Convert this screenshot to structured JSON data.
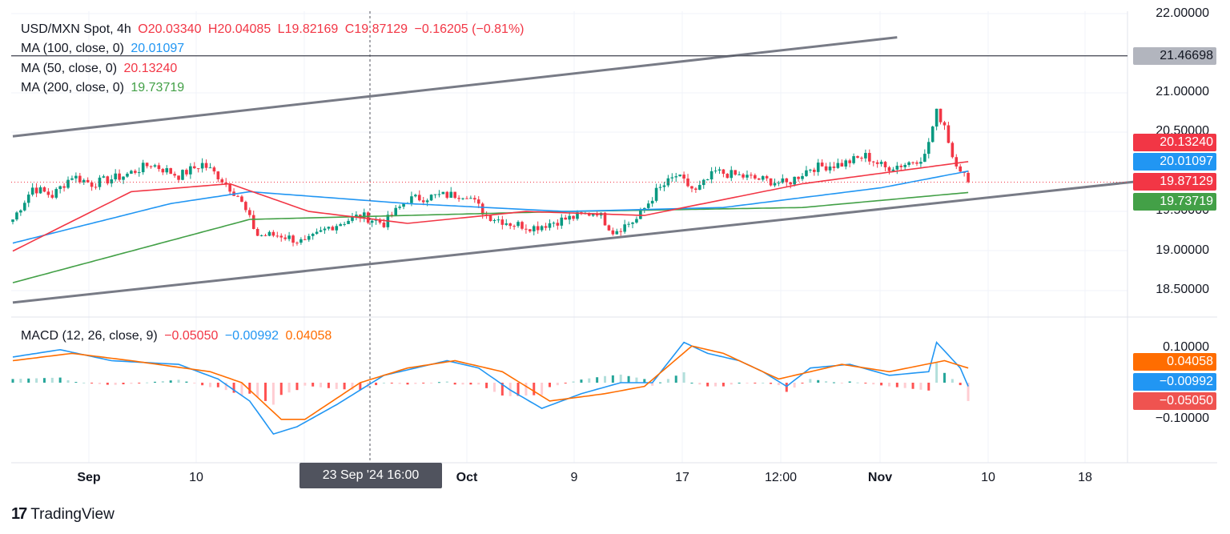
{
  "header": {
    "symbol": "USD/MXN Spot, 4h",
    "open": "O20.03340",
    "high": "H20.04085",
    "low": "L19.82169",
    "close": "C19.87129",
    "change": "−0.16205 (−0.81%)"
  },
  "ma_legend": [
    {
      "label": "MA (100, close, 0)",
      "value": "20.01097",
      "color": "#2196f3"
    },
    {
      "label": "MA (50, close, 0)",
      "value": "20.13240",
      "color": "#f23645"
    },
    {
      "label": "MA (200, close, 0)",
      "value": "19.73719",
      "color": "#43a047"
    }
  ],
  "macd_legend": {
    "label": "MACD (12, 26, close, 9)",
    "hist": "−0.05050",
    "macd": "−0.00992",
    "signal": "0.04058"
  },
  "price_boxes": [
    {
      "value": "21.46698",
      "color": "#b2b5be",
      "textColor": "#131722"
    },
    {
      "value": "20.13240",
      "color": "#f23645",
      "textColor": "#ffffff"
    },
    {
      "value": "20.01097",
      "color": "#2196f3",
      "textColor": "#ffffff"
    },
    {
      "value": "19.87129",
      "color": "#f23645",
      "textColor": "#ffffff"
    },
    {
      "value": "19.73719",
      "color": "#43a047",
      "textColor": "#ffffff"
    }
  ],
  "macd_boxes": [
    {
      "value": "0.04058",
      "color": "#ff6d00"
    },
    {
      "value": "−0.00992",
      "color": "#2196f3"
    },
    {
      "value": "−0.05050",
      "color": "#ef5350"
    }
  ],
  "crosshair_label": "23 Sep '24   16:00",
  "branding": "TradingView",
  "colors": {
    "up": "#089981",
    "down": "#f23645",
    "grid": "#f0f3fa",
    "trend": "#787b86"
  },
  "chart_data": {
    "type": "candlestick",
    "title": "USD/MXN Spot, 4h",
    "price_axis": {
      "ticks": [
        "22.00000",
        "21.00000",
        "20.50000",
        "19.50000",
        "19.00000",
        "18.50000"
      ],
      "range": [
        18.2,
        22.0
      ]
    },
    "x_ticks": [
      {
        "label": "Sep",
        "bold": true
      },
      {
        "label": "10",
        "bold": false
      },
      {
        "label": "Oct",
        "bold": true
      },
      {
        "label": "9",
        "bold": false
      },
      {
        "label": "17",
        "bold": false
      },
      {
        "label": "12:00",
        "bold": false
      },
      {
        "label": "Nov",
        "bold": true
      },
      {
        "label": "10",
        "bold": false
      },
      {
        "label": "18",
        "bold": false
      }
    ],
    "horizontal_line": 21.46698,
    "last_close": 19.87129,
    "price_anchors": [
      {
        "t": 0,
        "p": 19.4
      },
      {
        "t": 5,
        "p": 19.8
      },
      {
        "t": 10,
        "p": 19.7
      },
      {
        "t": 15,
        "p": 19.95
      },
      {
        "t": 20,
        "p": 19.85
      },
      {
        "t": 28,
        "p": 19.95
      },
      {
        "t": 35,
        "p": 20.1
      },
      {
        "t": 42,
        "p": 19.95
      },
      {
        "t": 48,
        "p": 20.1
      },
      {
        "t": 52,
        "p": 19.95
      },
      {
        "t": 57,
        "p": 19.7
      },
      {
        "t": 62,
        "p": 19.2
      },
      {
        "t": 68,
        "p": 19.2
      },
      {
        "t": 74,
        "p": 19.1
      },
      {
        "t": 80,
        "p": 19.3
      },
      {
        "t": 88,
        "p": 19.45
      },
      {
        "t": 94,
        "p": 19.35
      },
      {
        "t": 100,
        "p": 19.65
      },
      {
        "t": 108,
        "p": 19.7
      },
      {
        "t": 115,
        "p": 19.72
      },
      {
        "t": 120,
        "p": 19.45
      },
      {
        "t": 126,
        "p": 19.35
      },
      {
        "t": 132,
        "p": 19.3
      },
      {
        "t": 138,
        "p": 19.38
      },
      {
        "t": 144,
        "p": 19.45
      },
      {
        "t": 148,
        "p": 19.5
      },
      {
        "t": 152,
        "p": 19.25
      },
      {
        "t": 158,
        "p": 19.4
      },
      {
        "t": 163,
        "p": 19.75
      },
      {
        "t": 168,
        "p": 19.95
      },
      {
        "t": 173,
        "p": 19.75
      },
      {
        "t": 178,
        "p": 20.0
      },
      {
        "t": 184,
        "p": 19.95
      },
      {
        "t": 190,
        "p": 19.9
      },
      {
        "t": 196,
        "p": 19.85
      },
      {
        "t": 202,
        "p": 20.05
      },
      {
        "t": 210,
        "p": 20.1
      },
      {
        "t": 216,
        "p": 20.2
      },
      {
        "t": 221,
        "p": 20.05
      },
      {
        "t": 226,
        "p": 20.1
      },
      {
        "t": 231,
        "p": 20.2
      },
      {
        "t": 234,
        "p": 20.75
      },
      {
        "t": 236,
        "p": 20.6
      },
      {
        "t": 238,
        "p": 20.2
      },
      {
        "t": 240,
        "p": 20.05
      },
      {
        "t": 242,
        "p": 19.87
      }
    ],
    "ma100": [
      [
        0,
        19.1
      ],
      [
        40,
        19.6
      ],
      [
        60,
        19.75
      ],
      [
        100,
        19.6
      ],
      [
        140,
        19.5
      ],
      [
        180,
        19.55
      ],
      [
        220,
        19.8
      ],
      [
        242,
        20.01
      ]
    ],
    "ma50": [
      [
        0,
        19.0
      ],
      [
        30,
        19.75
      ],
      [
        55,
        19.85
      ],
      [
        75,
        19.5
      ],
      [
        100,
        19.35
      ],
      [
        130,
        19.5
      ],
      [
        160,
        19.45
      ],
      [
        200,
        19.85
      ],
      [
        242,
        20.13
      ]
    ],
    "ma200": [
      [
        0,
        18.6
      ],
      [
        60,
        19.4
      ],
      [
        100,
        19.45
      ],
      [
        140,
        19.5
      ],
      [
        200,
        19.55
      ],
      [
        242,
        19.74
      ]
    ],
    "trendlines": [
      {
        "from": [
          0,
          20.45
        ],
        "to": [
          224,
          21.7
        ]
      },
      {
        "from": [
          0,
          18.35
        ],
        "to": [
          285,
          19.88
        ]
      }
    ],
    "macd": {
      "axis_ticks": [
        "0.10000",
        "−0.10000"
      ],
      "range": [
        -0.17,
        0.13
      ],
      "macd": [
        [
          0,
          0.07
        ],
        [
          12,
          0.09
        ],
        [
          25,
          0.06
        ],
        [
          42,
          0.05
        ],
        [
          52,
          0.01
        ],
        [
          60,
          -0.05
        ],
        [
          66,
          -0.14
        ],
        [
          72,
          -0.12
        ],
        [
          82,
          -0.06
        ],
        [
          94,
          0.02
        ],
        [
          110,
          0.06
        ],
        [
          118,
          0.04
        ],
        [
          126,
          -0.02
        ],
        [
          134,
          -0.07
        ],
        [
          144,
          -0.03
        ],
        [
          154,
          0.0
        ],
        [
          162,
          0.0
        ],
        [
          170,
          0.11
        ],
        [
          176,
          0.08
        ],
        [
          184,
          0.06
        ],
        [
          190,
          0.03
        ],
        [
          196,
          -0.01
        ],
        [
          202,
          0.04
        ],
        [
          212,
          0.05
        ],
        [
          222,
          0.02
        ],
        [
          232,
          0.03
        ],
        [
          234,
          0.11
        ],
        [
          240,
          0.04
        ],
        [
          242,
          -0.01
        ]
      ],
      "signal": [
        [
          0,
          0.06
        ],
        [
          15,
          0.08
        ],
        [
          30,
          0.06
        ],
        [
          50,
          0.03
        ],
        [
          58,
          0.0
        ],
        [
          68,
          -0.1
        ],
        [
          74,
          -0.1
        ],
        [
          88,
          0.0
        ],
        [
          100,
          0.04
        ],
        [
          112,
          0.06
        ],
        [
          124,
          0.03
        ],
        [
          136,
          -0.05
        ],
        [
          150,
          -0.03
        ],
        [
          160,
          -0.01
        ],
        [
          172,
          0.1
        ],
        [
          180,
          0.08
        ],
        [
          194,
          0.01
        ],
        [
          210,
          0.05
        ],
        [
          222,
          0.03
        ],
        [
          236,
          0.06
        ],
        [
          242,
          0.04
        ]
      ]
    }
  }
}
